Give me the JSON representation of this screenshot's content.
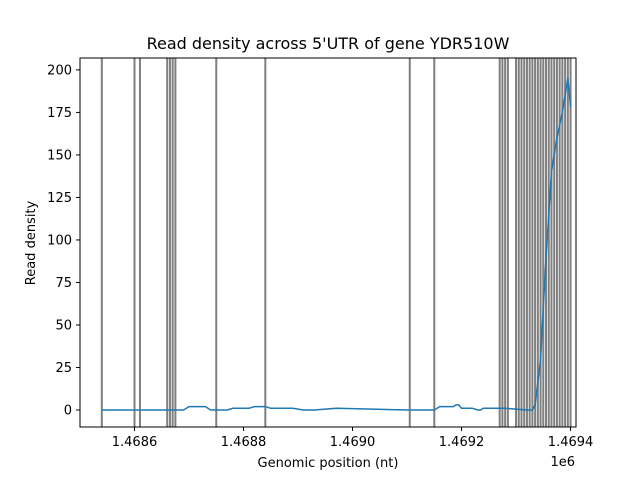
{
  "chart_data": {
    "type": "line",
    "title": "Read density across 5'UTR of gene YDR510W",
    "xlabel": "Genomic position (nt)",
    "ylabel": "Read density",
    "x_offset_label": "1e6",
    "xlim": [
      1468500,
      1469410
    ],
    "ylim": [
      -10,
      207
    ],
    "x_ticks": [
      {
        "value": 1468600,
        "label": "1.4686"
      },
      {
        "value": 1468800,
        "label": "1.4688"
      },
      {
        "value": 1469000,
        "label": "1.4690"
      },
      {
        "value": 1469200,
        "label": "1.4692"
      },
      {
        "value": 1469400,
        "label": "1.4694"
      }
    ],
    "y_ticks": [
      {
        "value": 0,
        "label": "0"
      },
      {
        "value": 25,
        "label": "25"
      },
      {
        "value": 50,
        "label": "50"
      },
      {
        "value": 75,
        "label": "75"
      },
      {
        "value": 100,
        "label": "100"
      },
      {
        "value": 125,
        "label": "125"
      },
      {
        "value": 150,
        "label": "150"
      },
      {
        "value": 175,
        "label": "175"
      },
      {
        "value": 200,
        "label": "200"
      }
    ],
    "line_color": "#1f77b4",
    "vline_color": "#000000",
    "grid": false,
    "series": [
      {
        "x": [
          1468540,
          1468690,
          1468700,
          1468730,
          1468740,
          1468770,
          1468780,
          1468810,
          1468820,
          1468840,
          1468850,
          1468890,
          1468910,
          1468930,
          1468970,
          1469100,
          1469150,
          1469160,
          1469185,
          1469190,
          1469195,
          1469200,
          1469220,
          1469230,
          1469235,
          1469240,
          1469280,
          1469320,
          1469330,
          1469335,
          1469345,
          1469355,
          1469365,
          1469375,
          1469385,
          1469395,
          1469400
        ],
        "y": [
          0,
          0,
          2,
          2,
          0,
          0,
          1,
          1,
          2,
          2,
          1,
          1,
          0,
          0,
          1,
          0,
          0,
          2,
          2,
          3,
          3,
          1,
          1,
          0,
          0,
          1,
          1,
          0,
          0,
          3,
          30,
          90,
          140,
          160,
          175,
          195,
          178
        ]
      }
    ],
    "vlines": [
      1468540,
      1468600,
      1468610,
      1468660,
      1468665,
      1468670,
      1468675,
      1468750,
      1468840,
      1469105,
      1469150,
      1469270,
      1469275,
      1469280,
      1469285,
      1469300,
      1469305,
      1469310,
      1469315,
      1469320,
      1469325,
      1469330,
      1469335,
      1469340,
      1469345,
      1469350,
      1469355,
      1469360,
      1469365,
      1469370,
      1469375,
      1469380,
      1469385,
      1469390,
      1469395,
      1469400
    ]
  }
}
